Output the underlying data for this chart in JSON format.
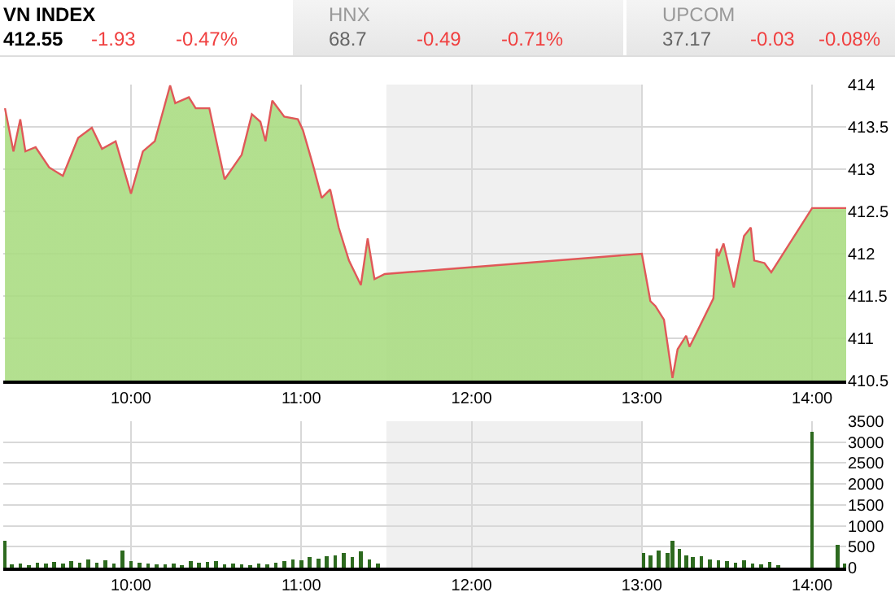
{
  "chart_data": [
    {
      "type": "area",
      "annotations": [
        "VN INDEX",
        "412.55",
        "-1.93",
        "-0.47%",
        "HNX",
        "68.7",
        "-0.49",
        "-0.71%",
        "UPCOM",
        "37.17",
        "-0.03",
        "-0.08%"
      ],
      "x": [
        9.26,
        9.31,
        9.35,
        9.38,
        9.44,
        9.52,
        9.6,
        9.69,
        9.77,
        9.83,
        9.91,
        10.0,
        10.07,
        10.14,
        10.23,
        10.26,
        10.34,
        10.38,
        10.46,
        10.55,
        10.65,
        10.71,
        10.76,
        10.79,
        10.83,
        10.9,
        10.98,
        11.01,
        11.07,
        11.12,
        11.17,
        11.22,
        11.28,
        11.35,
        11.39,
        11.43,
        11.49,
        13.0,
        13.05,
        13.08,
        13.13,
        13.18,
        13.21,
        13.26,
        13.28,
        13.32,
        13.42,
        13.44,
        13.45,
        13.48,
        13.54,
        13.6,
        13.64,
        13.66,
        13.72,
        13.76,
        14.0,
        14.2
      ],
      "series": [
        {
          "color": "#e05858",
          "values": [
            413.72,
            413.21,
            413.59,
            413.21,
            413.26,
            413.02,
            412.92,
            413.37,
            413.49,
            413.24,
            413.33,
            412.71,
            413.21,
            413.33,
            413.99,
            413.78,
            413.85,
            413.72,
            413.72,
            412.88,
            413.17,
            413.65,
            413.56,
            413.33,
            413.81,
            413.62,
            413.59,
            413.46,
            413.04,
            412.66,
            412.76,
            412.31,
            411.92,
            411.63,
            412.18,
            411.7,
            411.76,
            412.0,
            411.44,
            411.38,
            411.22,
            410.53,
            410.87,
            411.03,
            410.9,
            411.06,
            411.47,
            412.06,
            411.97,
            412.12,
            411.6,
            412.21,
            412.31,
            411.92,
            411.89,
            411.78,
            412.54,
            412.54
          ]
        }
      ],
      "xlim": [
        9.25,
        14.2
      ],
      "xticks": [
        {
          "value": 10,
          "label": "10:00"
        },
        {
          "value": 11,
          "label": "11:00"
        },
        {
          "value": 12,
          "label": "12:00"
        },
        {
          "value": 13,
          "label": "13:00"
        },
        {
          "value": 14,
          "label": "14:00"
        }
      ],
      "ylim": [
        410.5,
        414
      ],
      "yticks": [
        410.5,
        411,
        411.5,
        412,
        412.5,
        413,
        413.5,
        414
      ],
      "bands": [
        {
          "axis": "x",
          "from": 11.5,
          "to": 13,
          "color": "#f0f0f0"
        }
      ],
      "grid": true
    },
    {
      "type": "bar",
      "x": [
        9.26,
        9.3,
        9.35,
        9.4,
        9.45,
        9.5,
        9.55,
        9.6,
        9.65,
        9.7,
        9.75,
        9.8,
        9.85,
        9.9,
        9.95,
        10.0,
        10.05,
        10.1,
        10.15,
        10.2,
        10.25,
        10.3,
        10.35,
        10.4,
        10.45,
        10.5,
        10.55,
        10.6,
        10.65,
        10.7,
        10.75,
        10.8,
        10.85,
        10.9,
        10.95,
        11.0,
        11.05,
        11.1,
        11.15,
        11.2,
        11.25,
        11.3,
        11.35,
        11.4,
        11.45,
        13.01,
        13.05,
        13.1,
        13.15,
        13.18,
        13.22,
        13.26,
        13.3,
        13.35,
        13.4,
        13.45,
        13.5,
        13.55,
        13.6,
        13.65,
        13.7,
        13.75,
        13.8,
        14.0,
        14.15,
        14.19
      ],
      "series": [
        {
          "color": "#2d6a1f",
          "values": [
            650,
            80,
            100,
            60,
            120,
            90,
            130,
            100,
            150,
            110,
            200,
            120,
            180,
            90,
            400,
            150,
            120,
            100,
            80,
            70,
            90,
            60,
            150,
            120,
            130,
            160,
            80,
            90,
            70,
            60,
            100,
            80,
            120,
            150,
            200,
            180,
            250,
            220,
            280,
            300,
            350,
            250,
            380,
            200,
            100,
            350,
            300,
            400,
            350,
            650,
            450,
            300,
            250,
            280,
            200,
            180,
            150,
            120,
            180,
            100,
            80,
            130,
            60,
            3250,
            550,
            100
          ]
        }
      ],
      "xlim": [
        9.25,
        14.2
      ],
      "xticks": [
        {
          "value": 10,
          "label": "10:00"
        },
        {
          "value": 11,
          "label": "11:00"
        },
        {
          "value": 12,
          "label": "12:00"
        },
        {
          "value": 13,
          "label": "13:00"
        },
        {
          "value": 14,
          "label": "14:00"
        }
      ],
      "ylim": [
        0,
        3500
      ],
      "yticks": [
        0,
        500,
        1000,
        1500,
        2000,
        2500,
        3000,
        3500
      ],
      "bands": [
        {
          "axis": "x",
          "from": 11.5,
          "to": 13,
          "color": "#f0f0f0"
        }
      ],
      "grid": true
    }
  ]
}
